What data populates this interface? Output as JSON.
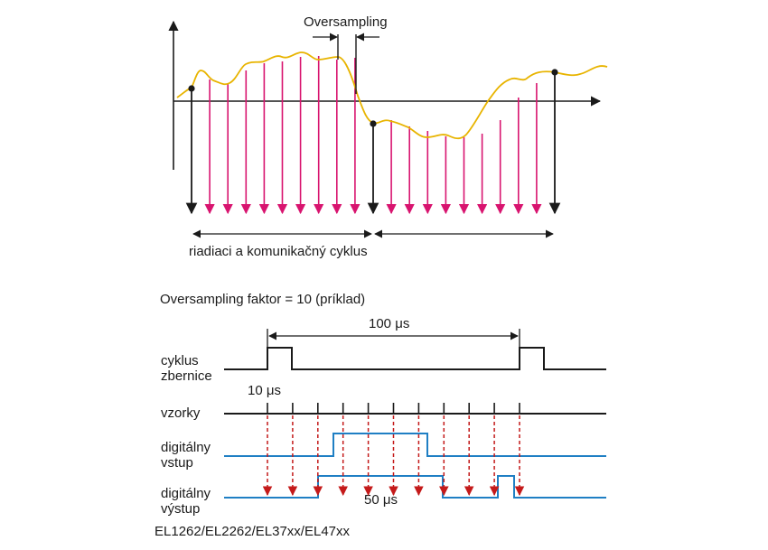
{
  "top": {
    "oversampling_label": "Oversampling",
    "cycle_label": "riadiaci a komunikačný cyklus"
  },
  "bottom": {
    "factor_label": "Oversampling faktor = 10 (príklad)",
    "period_label": "100 μs",
    "bus_cycle_label_1": "cyklus",
    "bus_cycle_label_2": "zbernice",
    "sample_period_label": "10 μs",
    "samples_label": "vzorky",
    "digital_input_label_1": "digitálny",
    "digital_input_label_2": "vstup",
    "digital_output_label_1": "digitálny",
    "digital_output_label_2": "výstup",
    "pulse_width_label": "50 μs",
    "devices_label": "EL1262/EL2262/EL37xx/EL47xx"
  },
  "colors": {
    "signal": "#e8b400",
    "sample_arrow": "#d8146f",
    "black": "#1a1a1a",
    "digital_line": "#1f7fc4",
    "dashed_arrow": "#c41a1a"
  }
}
